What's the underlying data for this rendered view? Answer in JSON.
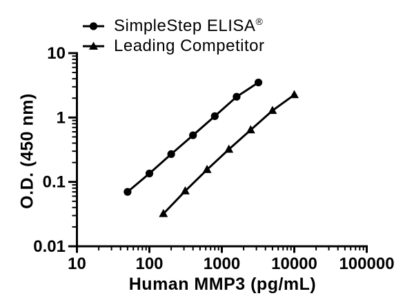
{
  "figure": {
    "background_color": "#ffffff",
    "ink_color": "#000000"
  },
  "legend": {
    "position": "top-left",
    "items": [
      {
        "label": "SimpleStep ELISA",
        "suffix": "®",
        "marker": "circle"
      },
      {
        "label": "Leading Competitor",
        "suffix": "",
        "marker": "triangle"
      }
    ]
  },
  "chart_data": {
    "type": "line",
    "title": "",
    "xlabel": "Human MMP3 (pg/mL)",
    "ylabel": "O.D. (450 nm)",
    "x_scale": "log",
    "y_scale": "log",
    "xlim": [
      10,
      100000
    ],
    "ylim": [
      0.01,
      10
    ],
    "grid": false,
    "legend_position": "top-left",
    "x_ticks": [
      10,
      100,
      1000,
      10000,
      100000
    ],
    "x_tick_labels": [
      "10",
      "100",
      "1000",
      "10000",
      "100000"
    ],
    "y_ticks": [
      10,
      1,
      0.1,
      0.01
    ],
    "y_tick_labels": [
      "10",
      "1",
      "0.1",
      "0.01"
    ],
    "minor_ticks": "log-decades-2-to-9",
    "series": [
      {
        "name": "SimpleStep ELISA®",
        "marker": "circle",
        "color": "#000000",
        "x": [
          50,
          100,
          200,
          400,
          800,
          1600,
          3200
        ],
        "y": [
          0.07,
          0.135,
          0.27,
          0.53,
          1.05,
          2.1,
          3.5
        ]
      },
      {
        "name": "Leading Competitor",
        "marker": "triangle",
        "color": "#000000",
        "x": [
          156,
          312,
          625,
          1250,
          2500,
          5000,
          10000
        ],
        "y": [
          0.032,
          0.072,
          0.155,
          0.32,
          0.64,
          1.28,
          2.25
        ]
      }
    ]
  }
}
